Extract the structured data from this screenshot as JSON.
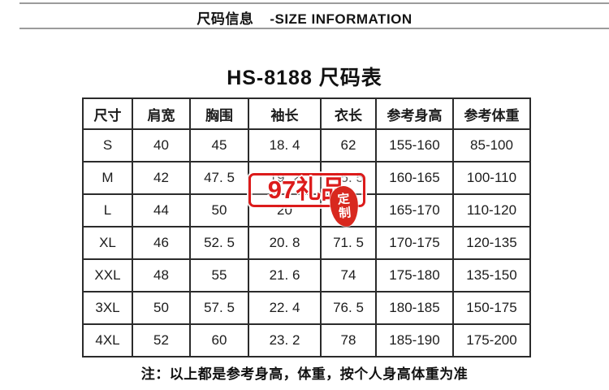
{
  "header": {
    "title_cn": "尺码信息",
    "title_en": "-SIZE INFORMATION"
  },
  "title": "HS-8188 尺码表",
  "size_table": {
    "columns": [
      "尺寸",
      "肩宽",
      "胸围",
      "袖长",
      "衣长",
      "参考身高",
      "参考体重"
    ],
    "rows": [
      [
        "S",
        "40",
        "45",
        "18. 4",
        "62",
        "155-160",
        "85-100"
      ],
      [
        "M",
        "42",
        "47. 5",
        "19. 2",
        "65. 5",
        "160-165",
        "100-110"
      ],
      [
        "L",
        "44",
        "50",
        "20",
        "69",
        "165-170",
        "110-120"
      ],
      [
        "XL",
        "46",
        "52. 5",
        "20. 8",
        "71. 5",
        "170-175",
        "120-135"
      ],
      [
        "XXL",
        "48",
        "55",
        "21. 6",
        "74",
        "175-180",
        "135-150"
      ],
      [
        "3XL",
        "50",
        "57. 5",
        "22. 4",
        "76. 5",
        "180-185",
        "150-175"
      ],
      [
        "4XL",
        "52",
        "60",
        "23. 2",
        "78",
        "185-190",
        "175-200"
      ]
    ]
  },
  "watermark": {
    "brand": "97礼品",
    "seal_char_top": "定",
    "seal_char_bottom": "制"
  },
  "note": "注：以上都是参考身高，体重，按个人身高体重为准",
  "colors": {
    "text": "#1c1c1c",
    "table_border": "#2b2b2b",
    "watermark_red": "#dc1b1b",
    "divider_gray": "#9b9b9b"
  }
}
